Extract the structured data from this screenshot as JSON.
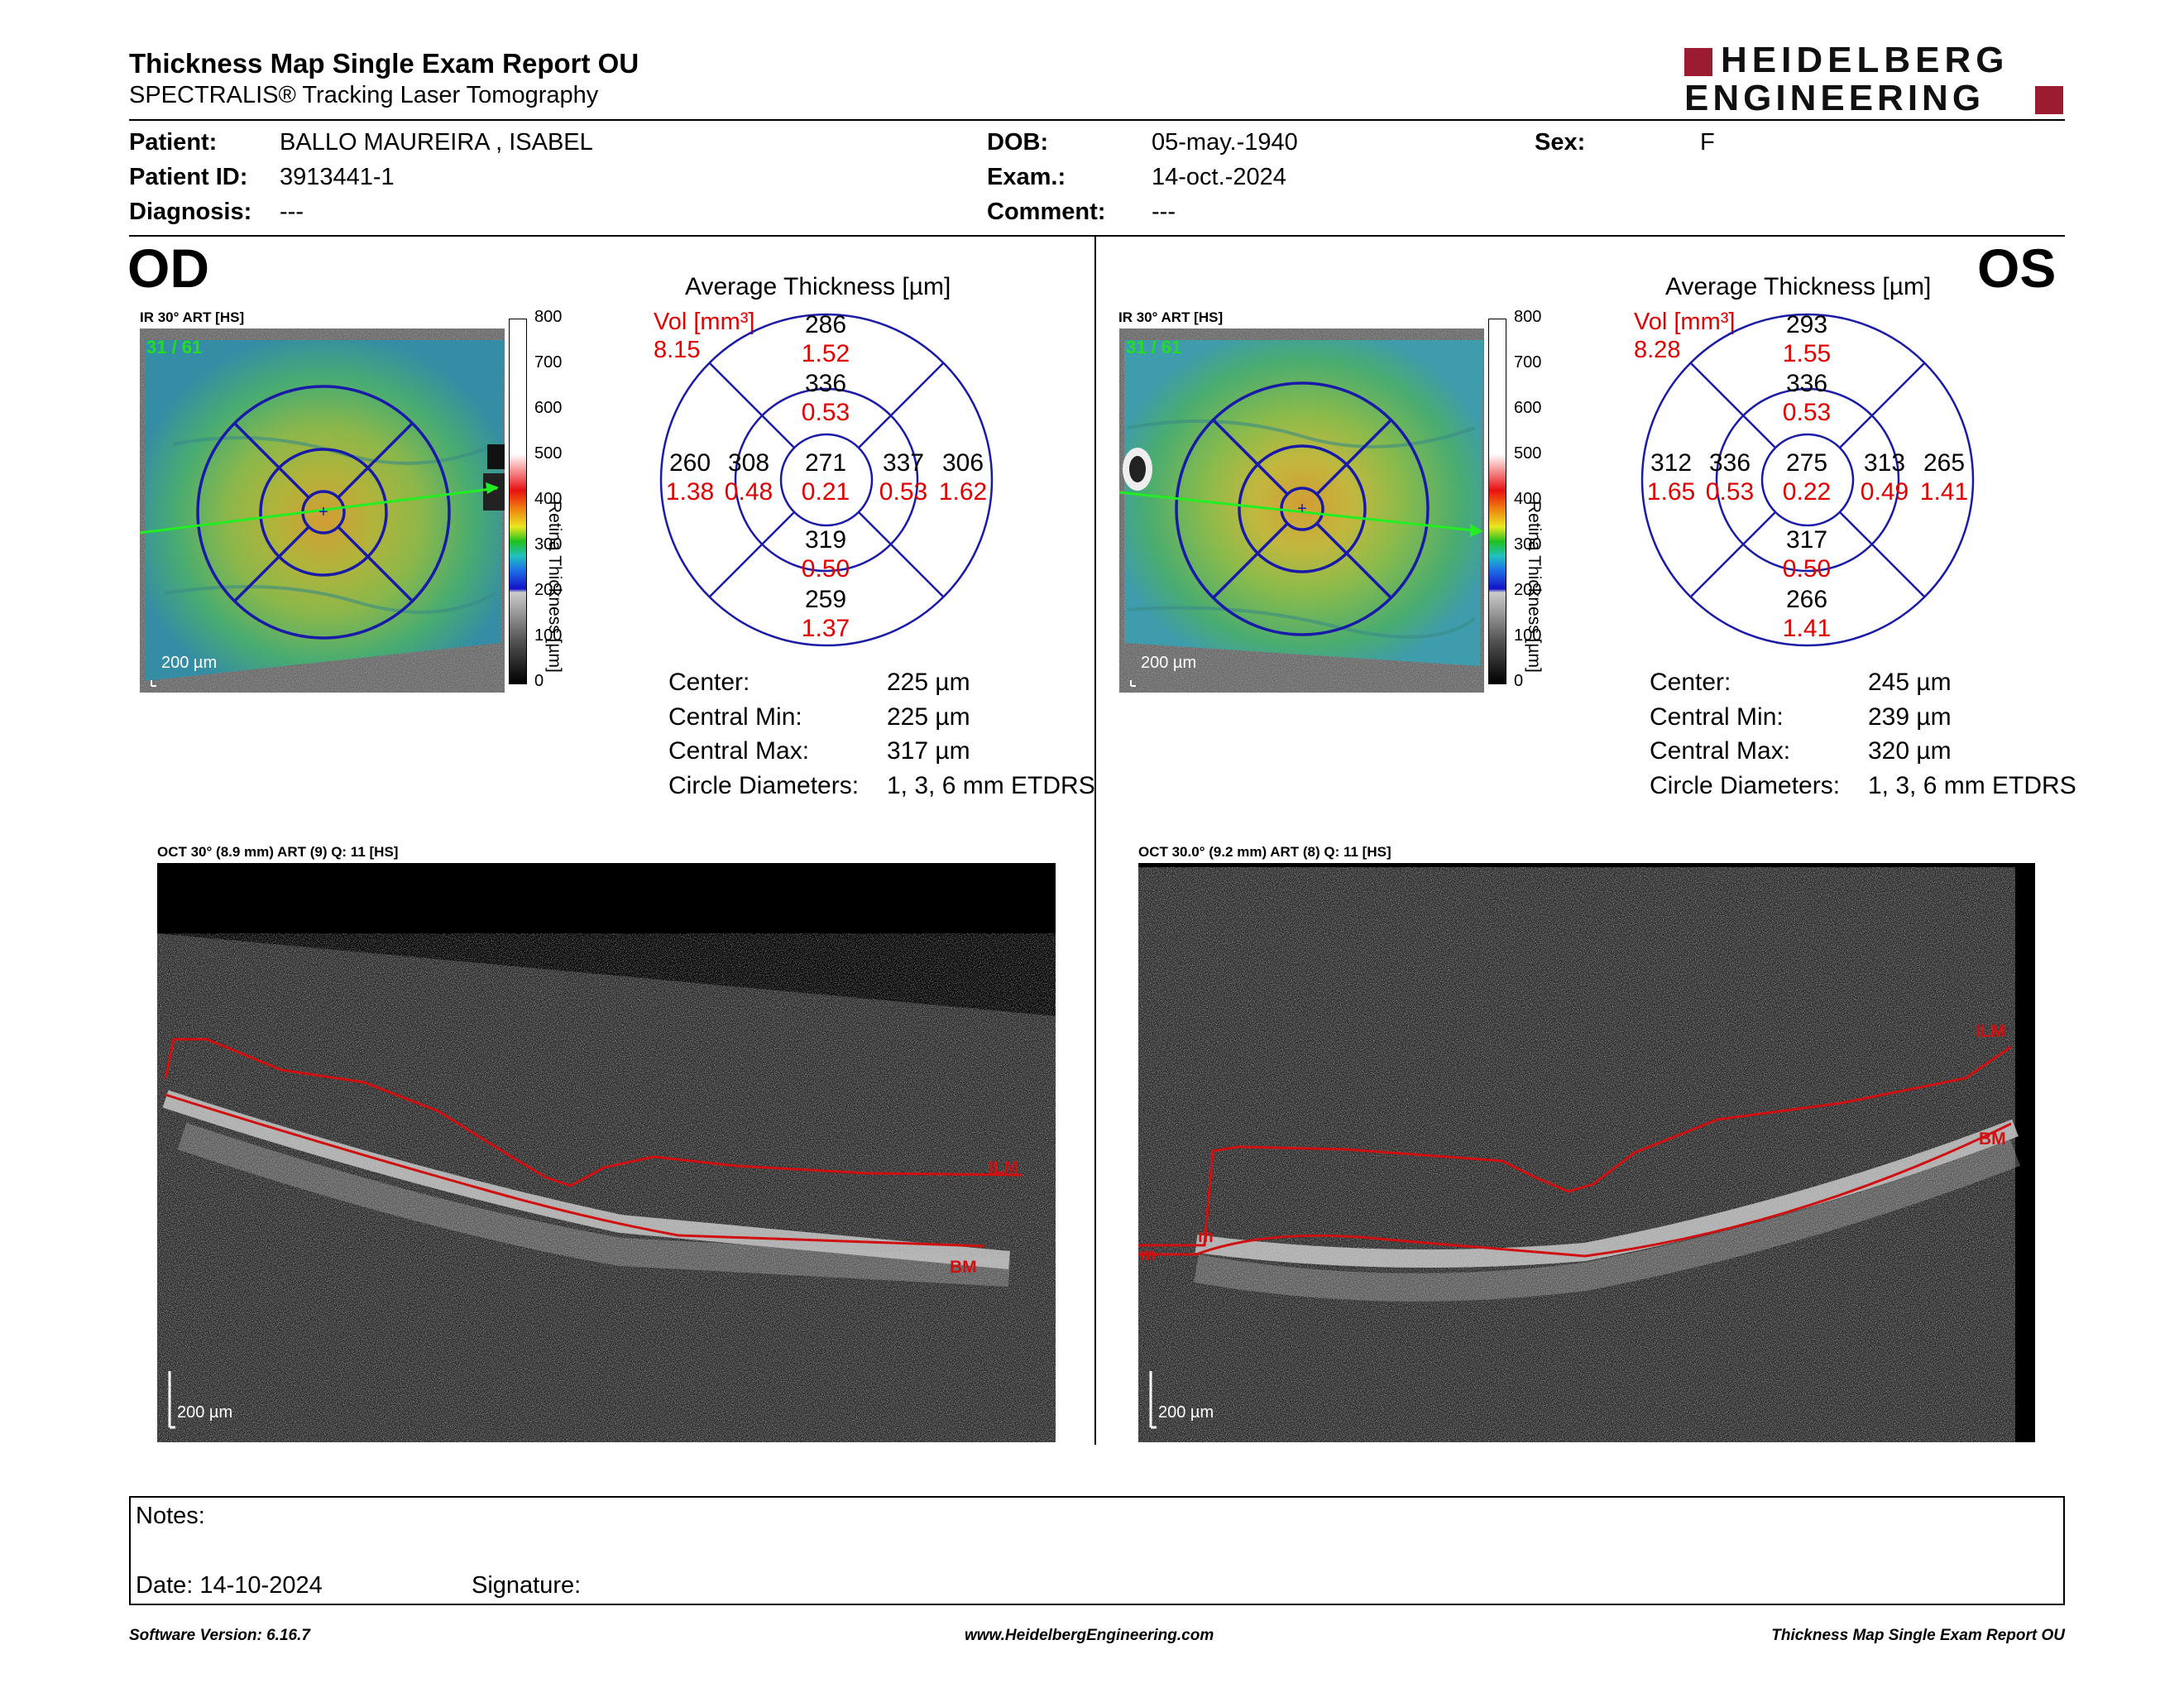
{
  "header": {
    "title": "Thickness Map Single Exam Report OU",
    "subtitle": "SPECTRALIS® Tracking Laser Tomography",
    "logo_line1": "HEIDELBERG",
    "logo_line2": "ENGINEERING"
  },
  "patient": {
    "patient_label": "Patient:",
    "patient_value": "BALLO MAUREIRA , ISABEL",
    "id_label": "Patient ID:",
    "id_value": "3913441-1",
    "diagnosis_label": "Diagnosis:",
    "diagnosis_value": "---",
    "dob_label": "DOB:",
    "dob_value": "05-may.-1940",
    "exam_label": "Exam.:",
    "exam_value": "14-oct.-2024",
    "comment_label": "Comment:",
    "comment_value": "---",
    "sex_label": "Sex:",
    "sex_value": "F"
  },
  "od": {
    "eye": "OD",
    "ir_label": "IR 30° ART [HS]",
    "frame_count": "31 / 61",
    "scale": "200 µm",
    "colorbar_label": "Retina  Thickness [µm]",
    "colorbar_ticks": [
      "800",
      "700",
      "600",
      "500",
      "400",
      "300",
      "200",
      "100",
      "0"
    ],
    "avg_title": "Average Thickness [µm]",
    "vol_label": "Vol [mm³]",
    "vol_total": "8.15",
    "sectors": {
      "center": {
        "t": "271",
        "v": "0.21"
      },
      "inner_sup": {
        "t": "336",
        "v": "0.53"
      },
      "inner_inf": {
        "t": "319",
        "v": "0.50"
      },
      "inner_left": {
        "t": "308",
        "v": "0.48"
      },
      "inner_right": {
        "t": "337",
        "v": "0.53"
      },
      "outer_sup": {
        "t": "286",
        "v": "1.52"
      },
      "outer_inf": {
        "t": "259",
        "v": "1.37"
      },
      "outer_left": {
        "t": "260",
        "v": "1.38"
      },
      "outer_right": {
        "t": "306",
        "v": "1.62"
      }
    },
    "stats": {
      "center_label": "Center:",
      "center": "225 µm",
      "min_label": "Central Min:",
      "min": "225 µm",
      "max_label": "Central Max:",
      "max": "317 µm",
      "diam_label": "Circle Diameters:",
      "diam": "1, 3, 6 mm ETDRS"
    },
    "oct_label": "OCT 30° (8.9 mm) ART (9) Q: 11 [HS]",
    "oct_scale": "200 µm",
    "ilm": "ILM",
    "bm": "BM"
  },
  "os": {
    "eye": "OS",
    "ir_label": "IR 30° ART [HS]",
    "frame_count": "31 / 61",
    "scale": "200 µm",
    "colorbar_label": "Retina  Thickness [µm]",
    "colorbar_ticks": [
      "800",
      "700",
      "600",
      "500",
      "400",
      "300",
      "200",
      "100",
      "0"
    ],
    "avg_title": "Average Thickness [µm]",
    "vol_label": "Vol [mm³]",
    "vol_total": "8.28",
    "sectors": {
      "center": {
        "t": "275",
        "v": "0.22"
      },
      "inner_sup": {
        "t": "336",
        "v": "0.53"
      },
      "inner_inf": {
        "t": "317",
        "v": "0.50"
      },
      "inner_left": {
        "t": "336",
        "v": "0.53"
      },
      "inner_right": {
        "t": "313",
        "v": "0.49"
      },
      "outer_sup": {
        "t": "293",
        "v": "1.55"
      },
      "outer_inf": {
        "t": "266",
        "v": "1.41"
      },
      "outer_left": {
        "t": "312",
        "v": "1.65"
      },
      "outer_right": {
        "t": "265",
        "v": "1.41"
      }
    },
    "stats": {
      "center_label": "Center:",
      "center": "245 µm",
      "min_label": "Central Min:",
      "min": "239 µm",
      "max_label": "Central Max:",
      "max": "320 µm",
      "diam_label": "Circle Diameters:",
      "diam": "1, 3, 6 mm ETDRS"
    },
    "oct_label": "OCT 30.0° (9.2 mm) ART (8) Q: 11 [HS]",
    "oct_scale": "200 µm",
    "ilm": "ILM",
    "bm": "BM",
    "ilm_small": "m",
    "bm_small": "m"
  },
  "notes": {
    "notes_label": "Notes:",
    "date_label": "Date: 14-10-2024",
    "signature_label": "Signature:"
  },
  "footer": {
    "version": "Software Version: 6.16.7",
    "url": "www.HeidelbergEngineering.com",
    "report": "Thickness Map Single Exam Report OU"
  },
  "colors": {
    "brand": "#9b1b30",
    "etdrs_grid": "#1a1aa8",
    "volume_red": "#e00000",
    "segmentation_red": "#d01010"
  }
}
